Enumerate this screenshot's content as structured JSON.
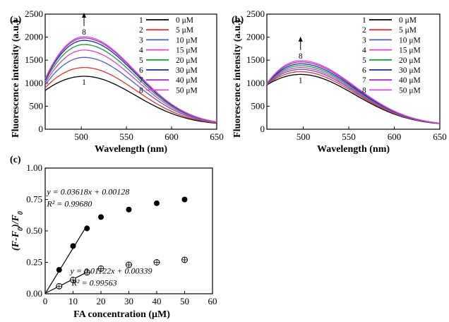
{
  "chart_data": [
    {
      "panel_label": "(a)",
      "type": "line",
      "xlabel": "Wavelength (nm)",
      "ylabel": "Fluorescence intensity (a.u.)",
      "xlim": [
        460,
        650
      ],
      "ylim": [
        0,
        2500
      ],
      "xticks": [
        500,
        550,
        600,
        650
      ],
      "yticks": [
        0,
        500,
        1000,
        1500,
        2000,
        2500
      ],
      "legend_position": "top-right",
      "annotations": {
        "top_label": "8",
        "bottom_label": "1",
        "arrow": "up"
      },
      "series": [
        {
          "name": "0 μM",
          "index": "1",
          "color": "#000000",
          "peak": 1150,
          "start": 840
        },
        {
          "name": "5 μM",
          "index": "2",
          "color": "#e8332e",
          "peak": 1340,
          "start": 900
        },
        {
          "name": "10 μM",
          "index": "3",
          "color": "#4a60c8",
          "peak": 1560,
          "start": 960
        },
        {
          "name": "15 μM",
          "index": "4",
          "color": "#e040c8",
          "peak": 1720,
          "start": 1000
        },
        {
          "name": "20 μM",
          "index": "5",
          "color": "#1e9a3a",
          "peak": 1840,
          "start": 1040
        },
        {
          "name": "30 μM",
          "index": "6",
          "color": "#1a2aa0",
          "peak": 1930,
          "start": 1070
        },
        {
          "name": "40 μM",
          "index": "7",
          "color": "#a030c8",
          "peak": 1980,
          "start": 1090
        },
        {
          "name": "50 μM",
          "index": "8",
          "color": "#d84ad8",
          "peak": 2010,
          "start": 1100
        }
      ],
      "peak_wavelength": 503,
      "end_value": 90
    },
    {
      "panel_label": "(b)",
      "type": "line",
      "xlabel": "Wavelength (nm)",
      "ylabel": "Fluorescence intensity (a.u.)",
      "xlim": [
        460,
        650
      ],
      "ylim": [
        0,
        2500
      ],
      "xticks": [
        500,
        550,
        600,
        650
      ],
      "yticks": [
        0,
        500,
        1000,
        1500,
        2000,
        2500
      ],
      "legend_position": "top-right",
      "annotations": {
        "top_label": "8",
        "bottom_label": "1",
        "arrow": "up"
      },
      "series": [
        {
          "name": "0 μM",
          "index": "1",
          "color": "#000000",
          "peak": 1190,
          "start": 960
        },
        {
          "name": "5 μM",
          "index": "2",
          "color": "#e8332e",
          "peak": 1250,
          "start": 970
        },
        {
          "name": "10 μM",
          "index": "3",
          "color": "#4a60c8",
          "peak": 1300,
          "start": 975
        },
        {
          "name": "15 μM",
          "index": "4",
          "color": "#e040c8",
          "peak": 1340,
          "start": 980
        },
        {
          "name": "20 μM",
          "index": "5",
          "color": "#1e9a3a",
          "peak": 1380,
          "start": 985
        },
        {
          "name": "30 μM",
          "index": "6",
          "color": "#1a2aa0",
          "peak": 1420,
          "start": 990
        },
        {
          "name": "40 μM",
          "index": "7",
          "color": "#a030c8",
          "peak": 1460,
          "start": 995
        },
        {
          "name": "50 μM",
          "index": "8",
          "color": "#d84ad8",
          "peak": 1490,
          "start": 1000
        }
      ],
      "peak_wavelength": 497,
      "end_value": 80
    },
    {
      "panel_label": "(c)",
      "type": "scatter",
      "xlabel": "FA concentration (μM)",
      "ylabel": "(F-F0)/F0",
      "xlim": [
        0,
        60
      ],
      "ylim": [
        0,
        1.0
      ],
      "xticks": [
        0,
        10,
        20,
        30,
        40,
        50,
        60
      ],
      "yticks": [
        0.0,
        0.25,
        0.5,
        0.75,
        1.0
      ],
      "ytick_labels": [
        "0.00",
        "0.25",
        "0.50",
        "0.75",
        "1.00"
      ],
      "series": [
        {
          "marker": "filled-circle",
          "x": [
            5,
            10,
            15,
            20,
            30,
            40,
            50
          ],
          "y": [
            0.19,
            0.38,
            0.52,
            0.61,
            0.67,
            0.72,
            0.75
          ],
          "fit": {
            "slope": 0.03618,
            "intercept": 0.00128,
            "x_range": [
              0,
              15
            ],
            "equation": "y = 0.03618x + 0.00128",
            "r2": "R² = 0.99680"
          }
        },
        {
          "marker": "hatched-circle",
          "x": [
            5,
            10,
            15,
            20,
            30,
            40,
            50
          ],
          "y": [
            0.06,
            0.11,
            0.17,
            0.2,
            0.23,
            0.25,
            0.27
          ],
          "fit": {
            "slope": 0.01122,
            "intercept": 0.00339,
            "x_range": [
              0,
              15
            ],
            "equation": "y = 0.01122x + 0.00339",
            "r2": "R² = 0.99563"
          }
        }
      ]
    }
  ]
}
